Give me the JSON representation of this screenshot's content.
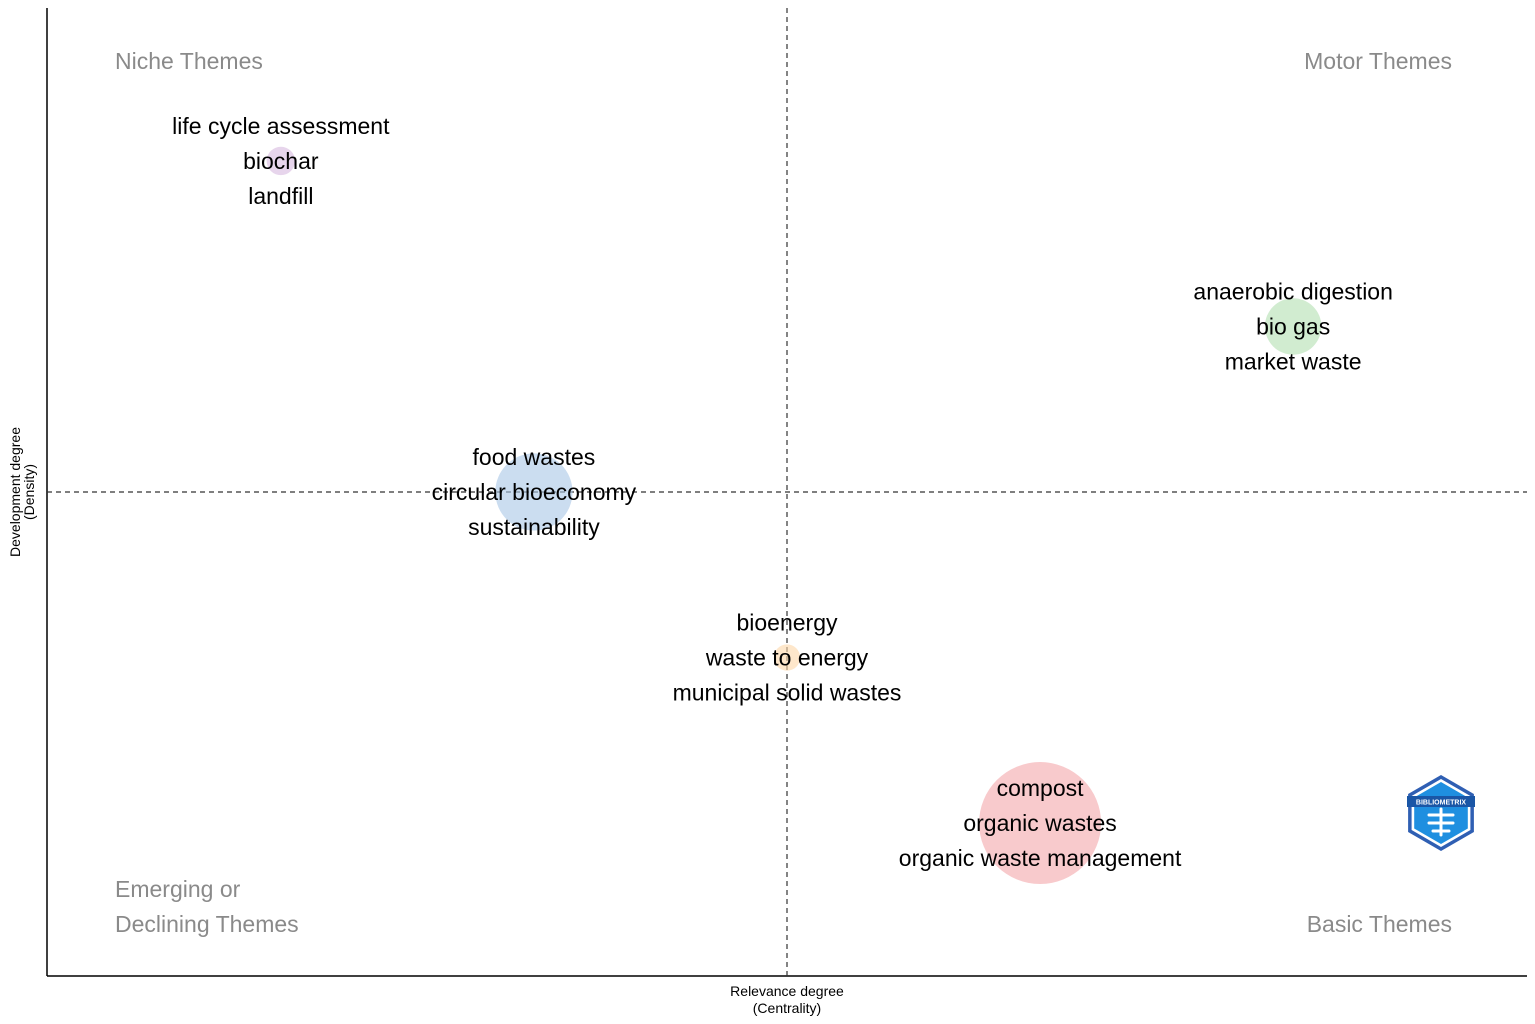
{
  "chart_data": {
    "type": "scatter",
    "title": "",
    "xlabel": [
      "Relevance degree",
      "(Centrality)"
    ],
    "ylabel": [
      "Development degree",
      "(Density)"
    ],
    "xlim": [
      0,
      1
    ],
    "ylim": [
      0,
      1
    ],
    "grid": false,
    "reference_lines": {
      "x": 0.5,
      "y": 0.5
    },
    "quadrants": {
      "top_left": [
        "Niche Themes"
      ],
      "top_right": [
        "Motor Themes"
      ],
      "bottom_left": [
        "Emerging or",
        "Declining Themes"
      ],
      "bottom_right": [
        "Basic Themes"
      ]
    },
    "clusters": [
      {
        "x": 0.12,
        "y": 0.88,
        "size": 0.1,
        "color": "#d7b9e0",
        "labels": [
          "life cycle assessment",
          "biochar",
          "landfill"
        ]
      },
      {
        "x": 0.88,
        "y": 0.69,
        "size": 0.37,
        "color": "#b3dfb0",
        "labels": [
          "anaerobic digestion",
          "bio gas",
          "market waste"
        ]
      },
      {
        "x": 0.31,
        "y": 0.5,
        "size": 0.57,
        "color": "#a9c7e6",
        "labels": [
          "food wastes",
          "circular bioeconomy",
          "sustainability"
        ]
      },
      {
        "x": 0.5,
        "y": 0.31,
        "size": 0.08,
        "color": "#fdd7a9",
        "labels": [
          "bioenergy",
          "waste to energy",
          "municipal solid wastes"
        ]
      },
      {
        "x": 0.69,
        "y": 0.12,
        "size": 1.0,
        "color": "#f4a7aa",
        "labels": [
          "compost",
          "organic wastes",
          "organic waste management"
        ]
      }
    ],
    "logo": {
      "text": "BIBLIOMETRIX",
      "color": "#1f8fe0"
    }
  }
}
